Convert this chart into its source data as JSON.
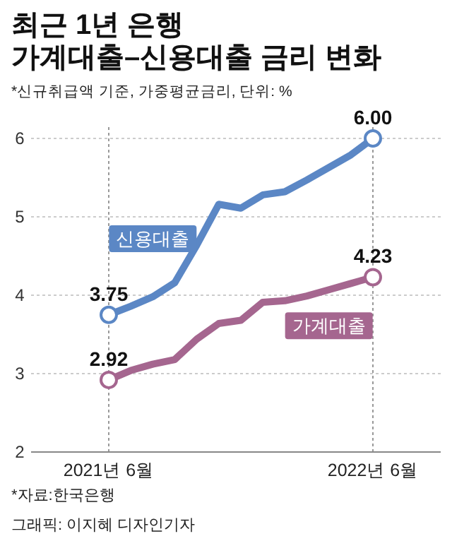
{
  "chart_data": {
    "type": "line",
    "title": "최근 1년 은행\n가계대출–신용대출 금리 변화",
    "subtitle": "*신규취급액 기준, 가중평균금리, 단위: %",
    "categories": [
      "2021년 6월",
      null,
      null,
      null,
      null,
      null,
      null,
      null,
      null,
      null,
      null,
      null,
      "2022년 6월"
    ],
    "series": [
      {
        "name": "신용대출",
        "color": "#5b87c5",
        "values": [
          3.75,
          3.86,
          3.98,
          4.16,
          4.64,
          5.16,
          5.11,
          5.28,
          5.32,
          5.47,
          5.63,
          5.79,
          6.0
        ],
        "value_labels": [
          "3.75",
          null,
          null,
          null,
          null,
          null,
          null,
          null,
          null,
          null,
          null,
          null,
          "6.00"
        ]
      },
      {
        "name": "가계대출",
        "color": "#a5668f",
        "values": [
          2.92,
          3.04,
          3.12,
          3.18,
          3.44,
          3.64,
          3.68,
          3.91,
          3.93,
          3.99,
          4.07,
          4.15,
          4.23
        ],
        "value_labels": [
          "2.92",
          null,
          null,
          null,
          null,
          null,
          null,
          null,
          null,
          null,
          null,
          null,
          "4.23"
        ]
      }
    ],
    "ylim": [
      2,
      6
    ],
    "yticks": [
      2,
      3,
      4,
      5,
      6
    ],
    "grid": true,
    "line_style": "solid",
    "annotations": [
      "*자료:한국은행",
      "그래픽: 이지혜 디자인기자"
    ]
  }
}
